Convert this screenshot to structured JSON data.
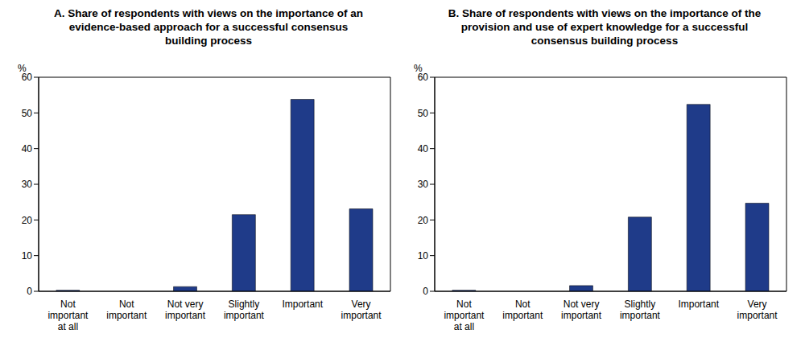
{
  "chart_data": [
    {
      "type": "bar",
      "title": "A. Share of respondents with views on the importance of an evidence-based approach for a successful consensus building process",
      "y_label": "%",
      "categories": [
        "Not important at all",
        "Not important",
        "Not very important",
        "Slightly important",
        "Important",
        "Very important"
      ],
      "values": [
        0.3,
        0,
        1.3,
        21.5,
        53.8,
        23.1
      ],
      "color": "#1f3b89",
      "ylim": [
        0,
        60
      ],
      "yticks": [
        0,
        10,
        20,
        30,
        40,
        50,
        60
      ],
      "grid": false
    },
    {
      "type": "bar",
      "title": "B. Share of respondents with views on the importance of the provision and use of expert knowledge for a successful consensus building process",
      "y_label": "%",
      "categories": [
        "Not important at all",
        "Not important",
        "Not very important",
        "Slightly important",
        "Important",
        "Very important"
      ],
      "values": [
        0.3,
        0,
        1.6,
        20.8,
        52.4,
        24.7
      ],
      "color": "#1f3b89",
      "ylim": [
        0,
        60
      ],
      "yticks": [
        0,
        10,
        20,
        30,
        40,
        50,
        60
      ],
      "grid": false
    }
  ]
}
